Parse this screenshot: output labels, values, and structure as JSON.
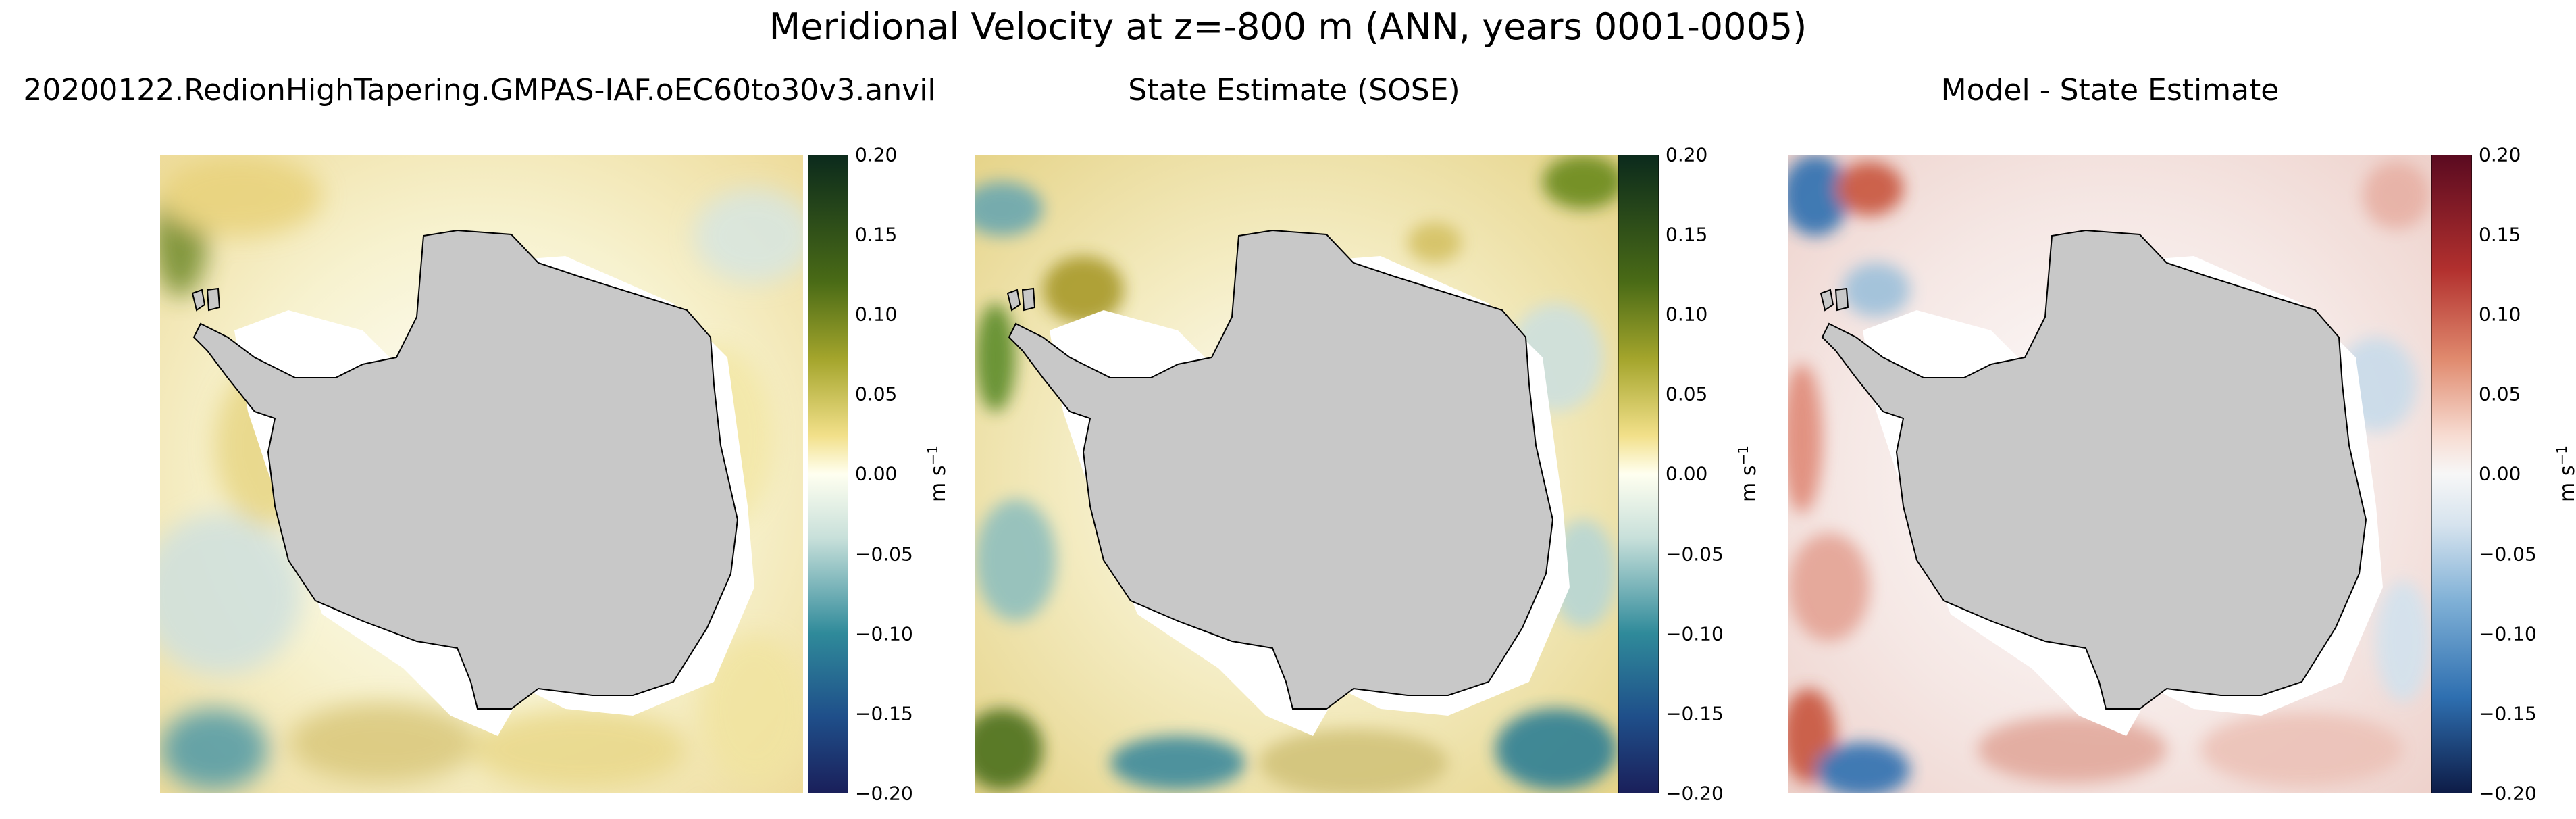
{
  "figure": {
    "suptitle": "Meridional Velocity at z=-800 m (ANN, years 0001-0005)"
  },
  "chart_data": [
    {
      "type": "heatmap",
      "title": "20200122.RedionHighTapering.GMPAS-IAF.oEC60to30v3.anvil",
      "colormap": "gist_earth-like (navy-teal-white-yellow-olive-green)",
      "colorbar": {
        "label": "m s$^{-1}$",
        "label_text": "m s",
        "label_exp": "−1",
        "range": [
          -0.2,
          0.2
        ],
        "ticks": [
          "0.20",
          "0.15",
          "0.10",
          "0.05",
          "0.00",
          "−0.05",
          "−0.10",
          "−0.15",
          "−0.20"
        ]
      }
    },
    {
      "type": "heatmap",
      "title": "State Estimate (SOSE)",
      "colormap": "gist_earth-like (navy-teal-white-yellow-olive-green)",
      "colorbar": {
        "label": "m s$^{-1}$",
        "label_text": "m s",
        "label_exp": "−1",
        "range": [
          -0.2,
          0.2
        ],
        "ticks": [
          "0.20",
          "0.15",
          "0.10",
          "0.05",
          "0.00",
          "−0.05",
          "−0.10",
          "−0.15",
          "−0.20"
        ]
      }
    },
    {
      "type": "heatmap",
      "title": "Model - State Estimate",
      "colormap": "RdBu_r (blue-white-red)",
      "colorbar": {
        "label": "m s$^{-1}$",
        "label_text": "m s",
        "label_exp": "−1",
        "range": [
          -0.2,
          0.2
        ],
        "ticks": [
          "0.20",
          "0.15",
          "0.10",
          "0.05",
          "0.00",
          "−0.05",
          "−0.10",
          "−0.15",
          "−0.20"
        ]
      }
    }
  ],
  "colors": {
    "land": "#c8c8c8",
    "ice_shelf_mask": "#ffffff",
    "earth_navy": "#1a1f5a",
    "earth_teal": "#2f8a9a",
    "earth_yellow": "#f2e08a",
    "earth_olive": "#7f8f14",
    "earth_green": "#0b2a1c",
    "diff_navy": "#0d1b46",
    "diff_blue": "#2e6fb0",
    "diff_red": "#c8543e",
    "diff_maroon": "#5a0a20"
  }
}
